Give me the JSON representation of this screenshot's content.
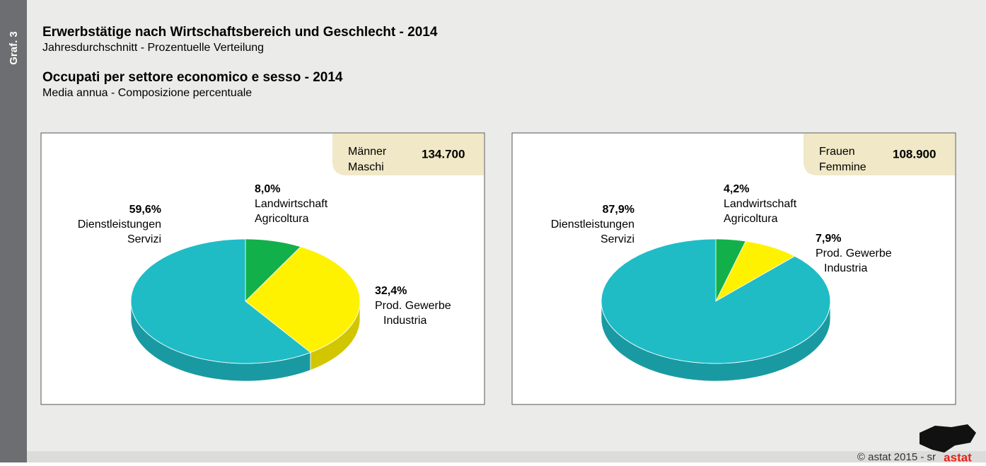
{
  "side_label": "Graf. 3",
  "title_de": "Erwerbstätige nach Wirtschaftsbereich und Geschlecht - 2014",
  "subtitle_de": "Jahresdurchschnitt - Prozentuelle Verteilung",
  "title_it": "Occupati per settore economico e sesso - 2014",
  "subtitle_it": "Media annua - Composizione percentuale",
  "chart_data": [
    {
      "type": "pie",
      "group_de": "Männer",
      "group_it": "Maschi",
      "total": "134.700",
      "categories": [
        "Landwirtschaft",
        "Prod. Gewerbe",
        "Dienstleistungen"
      ],
      "categories_it": [
        "Agricoltura",
        "Industria",
        "Servizi"
      ],
      "values": [
        8.0,
        32.4,
        59.6
      ],
      "value_labels": [
        "8,0%",
        "32,4%",
        "59,6%"
      ],
      "colors": [
        "#12b04b",
        "#fff200",
        "#1fbcc6"
      ]
    },
    {
      "type": "pie",
      "group_de": "Frauen",
      "group_it": "Femmine",
      "total": "108.900",
      "categories": [
        "Landwirtschaft",
        "Prod. Gewerbe",
        "Dienstleistungen"
      ],
      "categories_it": [
        "Agricoltura",
        "Industria",
        "Servizi"
      ],
      "values": [
        4.2,
        7.9,
        87.9
      ],
      "value_labels": [
        "4,2%",
        "7,9%",
        "87,9%"
      ],
      "colors": [
        "#12b04b",
        "#fff200",
        "#1fbcc6"
      ]
    }
  ],
  "footer": "© astat 2015 - sr",
  "logo": "astat"
}
